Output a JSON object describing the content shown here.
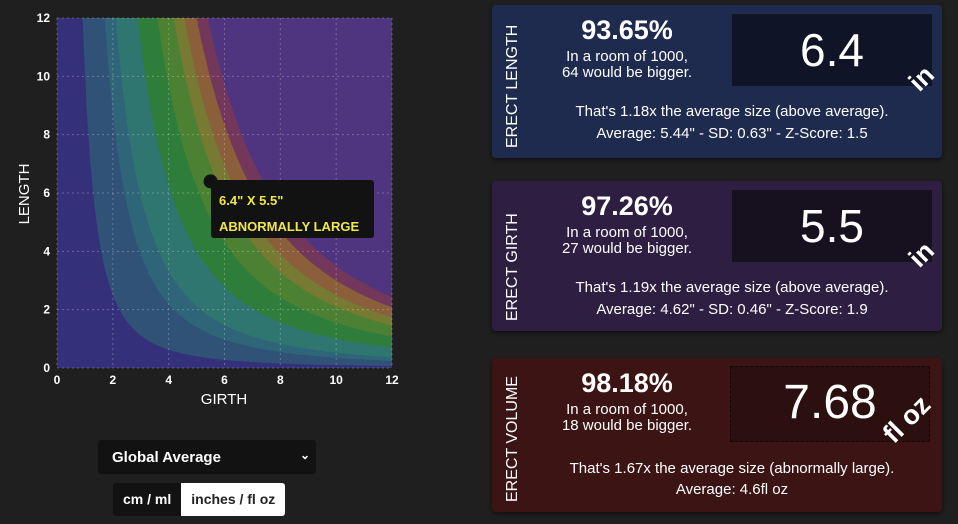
{
  "chart_data": {
    "type": "area",
    "title": "",
    "xlabel": "GIRTH",
    "ylabel": "LENGTH",
    "xlim": [
      0,
      12
    ],
    "ylim": [
      0,
      12
    ],
    "xticks": [
      "0",
      "2",
      "4",
      "6",
      "8",
      "10",
      "12"
    ],
    "yticks": [
      "0",
      "2",
      "4",
      "6",
      "8",
      "10",
      "12"
    ],
    "grid": true,
    "bands_volume_constant_L_times_G2": [
      10,
      35,
      53,
      100,
      155,
      210,
      250,
      300,
      350
    ],
    "band_colors": [
      "#2f5276",
      "#2f6578",
      "#2f7670",
      "#2f7d3b",
      "#4c8032",
      "#767a32",
      "#8a5f3a",
      "#74375c",
      "#4f3580"
    ],
    "background_color": "#35307a",
    "point": {
      "x": 5.5,
      "y": 6.4
    },
    "tooltip": {
      "line1": "6.4\" X 5.5\"",
      "line2": "ABNORMALLY LARGE"
    }
  },
  "controls": {
    "dataset": "Global Average",
    "unit_metric": "cm / ml",
    "unit_imperial": "inches / fl oz"
  },
  "cards": [
    {
      "title": "ERECT LENGTH",
      "percent": "93.65%",
      "room1": "In a room of 1000,",
      "room2": "64 would be bigger.",
      "value": "6.4",
      "unit": "in",
      "note1": "That's 1.18x the average size (above average).",
      "note2": "Average: 5.44\" - SD: 0.63\" - Z-Score: 1.5",
      "bg": "#1e2a4e",
      "box": "#0f1526"
    },
    {
      "title": "ERECT GIRTH",
      "percent": "97.26%",
      "room1": "In a room of 1000,",
      "room2": "27 would be bigger.",
      "value": "5.5",
      "unit": "in",
      "note1": "That's 1.19x the average size (above average).",
      "note2": "Average: 4.62\" - SD: 0.46\" - Z-Score: 1.9",
      "bg": "#2e1f42",
      "box": "#17111f"
    },
    {
      "title": "ERECT VOLUME",
      "percent": "98.18%",
      "room1": "In a room of 1000,",
      "room2": "18 would be bigger.",
      "value": "7.68",
      "unit": "fl oz",
      "note1": "That's 1.67x the average size (abnormally large).",
      "note2": "Average: 4.6fl oz",
      "bg": "#3c1414",
      "box": "#2c0f0f"
    }
  ]
}
